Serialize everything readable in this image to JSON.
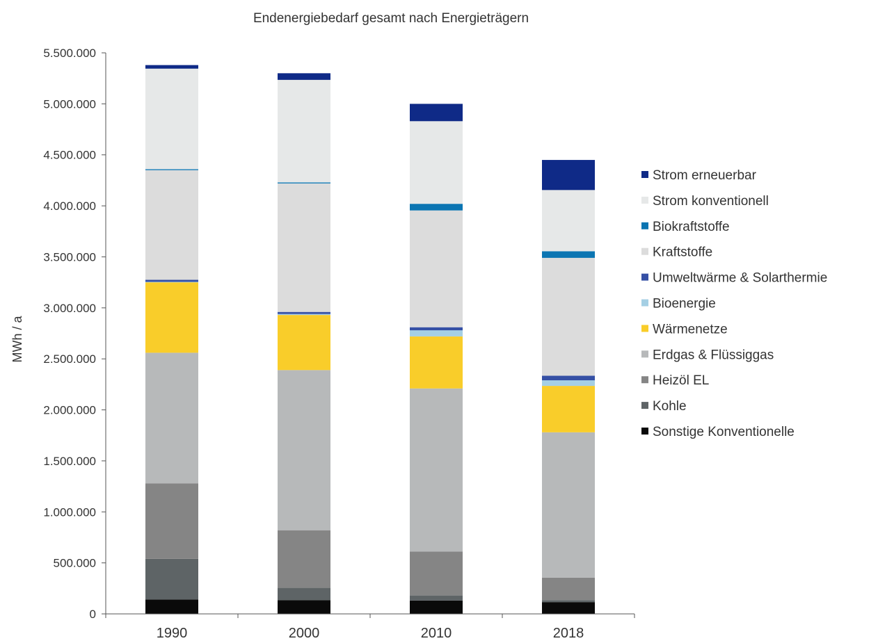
{
  "chart_data": {
    "type": "bar",
    "stacked": true,
    "title": "Endenergiebedarf gesamt nach Energieträgern",
    "xlabel": "",
    "ylabel": "MWh / a",
    "ylim": [
      0,
      5500000
    ],
    "yticks": [
      0,
      500000,
      1000000,
      1500000,
      2000000,
      2500000,
      3000000,
      3500000,
      4000000,
      4500000,
      5000000,
      5500000
    ],
    "ytick_labels": [
      "0",
      "500.000",
      "1.000.000",
      "1.500.000",
      "2.000.000",
      "2.500.000",
      "3.000.000",
      "3.500.000",
      "4.000.000",
      "4.500.000",
      "5.000.000",
      "5.500.000"
    ],
    "categories": [
      "1990",
      "2000",
      "2010",
      "2018"
    ],
    "grid": false,
    "legend_position": "right",
    "series": [
      {
        "name": "Sonstige Konventionelle",
        "color": "#0a0a0a",
        "values": [
          140000,
          135000,
          130000,
          115000
        ]
      },
      {
        "name": "Kohle",
        "color": "#5e6466",
        "values": [
          400000,
          120000,
          50000,
          20000
        ]
      },
      {
        "name": "Heizöl EL",
        "color": "#858585",
        "values": [
          740000,
          565000,
          430000,
          220000
        ]
      },
      {
        "name": "Erdgas & Flüssiggas",
        "color": "#b7b9ba",
        "values": [
          1280000,
          1570000,
          1600000,
          1425000
        ]
      },
      {
        "name": "Wärmenetze",
        "color": "#f9cd2a",
        "values": [
          690000,
          540000,
          510000,
          455000
        ]
      },
      {
        "name": "Bioenergie",
        "color": "#a5cfe4",
        "values": [
          5000,
          10000,
          60000,
          55000
        ]
      },
      {
        "name": "Umweltwärme & Solarthermie",
        "color": "#3550a5",
        "values": [
          20000,
          20000,
          30000,
          45000
        ]
      },
      {
        "name": "Kraftstoffe",
        "color": "#dcdcdc",
        "values": [
          1075000,
          1260000,
          1145000,
          1155000
        ]
      },
      {
        "name": "Biokraftstoffe",
        "color": "#0b75b2",
        "values": [
          10000,
          10000,
          65000,
          65000
        ]
      },
      {
        "name": "Strom konventionell",
        "color": "#e6e8e8",
        "values": [
          985000,
          1005000,
          810000,
          600000
        ]
      },
      {
        "name": "Strom erneuerbar",
        "color": "#0f2a87",
        "values": [
          35000,
          65000,
          170000,
          295000
        ]
      }
    ]
  }
}
